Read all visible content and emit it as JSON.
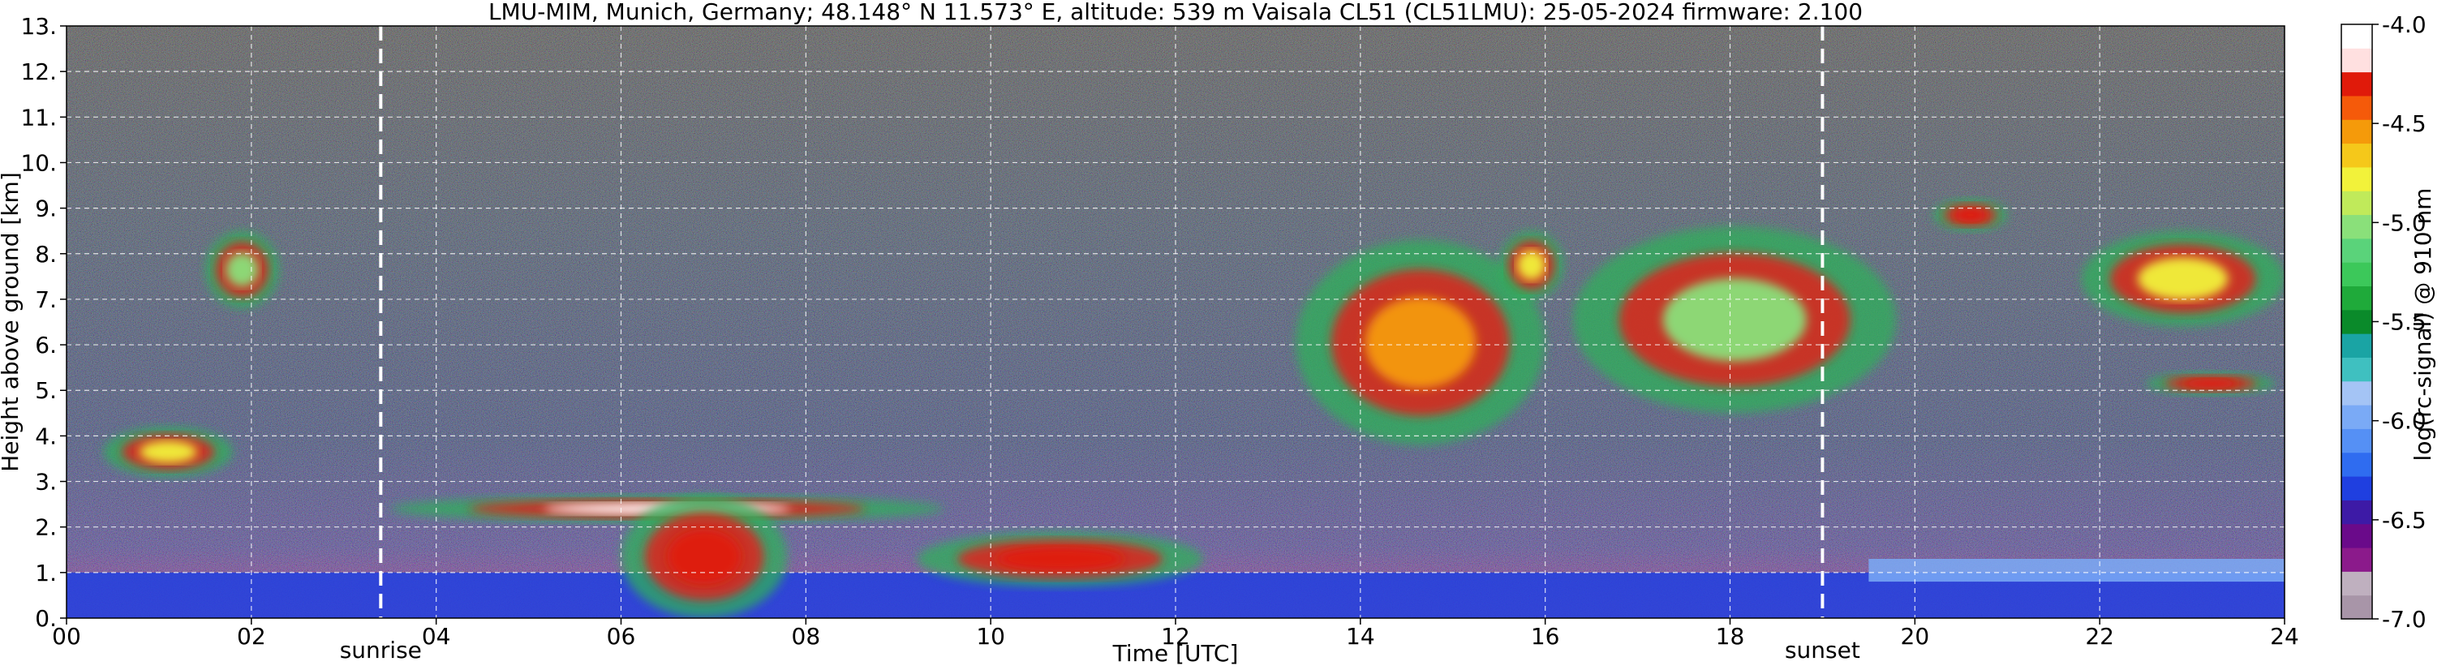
{
  "chart_data": {
    "type": "heatmap",
    "title": "LMU-MIM, Munich, Germany; 48.148° N 11.573° E, altitude: 539 m    Vaisala CL51 (CL51LMU): 25-05-2024    firmware: 2.100",
    "xlabel": "Time [UTC]",
    "ylabel": "Height above ground [km]",
    "xlim": [
      0,
      24
    ],
    "ylim": [
      0,
      13
    ],
    "x_ticks": [
      0,
      2,
      4,
      6,
      8,
      10,
      12,
      14,
      16,
      18,
      20,
      22,
      24
    ],
    "x_tick_labels": [
      "00",
      "02",
      "04",
      "06",
      "08",
      "10",
      "12",
      "14",
      "16",
      "18",
      "20",
      "22",
      "24"
    ],
    "y_ticks": [
      0,
      1,
      2,
      3,
      4,
      5,
      6,
      7,
      8,
      9,
      10,
      11,
      12,
      13
    ],
    "y_tick_labels": [
      "0.",
      "1.",
      "2.",
      "3.",
      "4.",
      "5.",
      "6.",
      "7.",
      "8.",
      "9.",
      "10.",
      "11.",
      "12.",
      "13."
    ],
    "grid": true,
    "events": [
      {
        "label": "sunrise",
        "time": 3.4
      },
      {
        "label": "sunset",
        "time": 19.0
      }
    ],
    "colorbar": {
      "label": "log(rc-signal) @ 910 nm",
      "range": [
        -7.0,
        -4.0
      ],
      "ticks": [
        -4.0,
        -4.5,
        -5.0,
        -5.5,
        -6.0,
        -6.5,
        -7.0
      ],
      "tick_labels": [
        "-4.0",
        "-4.5",
        "-5.0",
        "-5.5",
        "-6.0",
        "-6.5",
        "-7.0"
      ],
      "colors": [
        "#a895a8",
        "#bfb0bf",
        "#8b1a8b",
        "#6a0a8a",
        "#3d1aa6",
        "#1f3fe0",
        "#2f6cf0",
        "#5590f5",
        "#7aaaf6",
        "#a4c4f5",
        "#3fc0c0",
        "#1aa4a4",
        "#0a8a2a",
        "#1faa3a",
        "#3cc85a",
        "#5ad37a",
        "#8ae07a",
        "#c0ea5a",
        "#f2f23a",
        "#f5c81a",
        "#f59a0a",
        "#f55a0a",
        "#e01a0a",
        "#ffe0e0",
        "#ffffff"
      ]
    },
    "series": [
      {
        "kind": "layer",
        "x": [
          0,
          24
        ],
        "y": [
          0,
          1.0
        ],
        "level": -6.4
      },
      {
        "kind": "cloud",
        "x": [
          1.5,
          2.3
        ],
        "y": [
          6.8,
          8.5
        ],
        "level": -5.0
      },
      {
        "kind": "cloud",
        "x": [
          0.4,
          1.8
        ],
        "y": [
          3.1,
          4.2
        ],
        "level": -4.8
      },
      {
        "kind": "cloud",
        "x": [
          3.5,
          9.5
        ],
        "y": [
          2.1,
          2.7
        ],
        "level": -4.0
      },
      {
        "kind": "cloud",
        "x": [
          6.0,
          7.8
        ],
        "y": [
          0.0,
          2.7
        ],
        "level": -4.2
      },
      {
        "kind": "cloud",
        "x": [
          9.2,
          12.3
        ],
        "y": [
          0.7,
          1.9
        ],
        "level": -4.3
      },
      {
        "kind": "cloud",
        "x": [
          13.3,
          16.0
        ],
        "y": [
          3.8,
          8.3
        ],
        "level": -4.5
      },
      {
        "kind": "cloud",
        "x": [
          15.5,
          16.2
        ],
        "y": [
          7.0,
          8.5
        ],
        "level": -4.8
      },
      {
        "kind": "cloud",
        "x": [
          16.3,
          19.8
        ],
        "y": [
          4.5,
          8.6
        ],
        "level": -5.0
      },
      {
        "kind": "cloud",
        "x": [
          20.2,
          21.0
        ],
        "y": [
          8.5,
          9.2
        ],
        "level": -4.2
      },
      {
        "kind": "cloud",
        "x": [
          21.8,
          24.0
        ],
        "y": [
          6.4,
          8.5
        ],
        "level": -4.8
      },
      {
        "kind": "cloud",
        "x": [
          22.5,
          23.9
        ],
        "y": [
          4.9,
          5.4
        ],
        "level": -4.3
      },
      {
        "kind": "layer",
        "x": [
          19.5,
          24.0
        ],
        "y": [
          0.8,
          1.3
        ],
        "level": -6.0
      }
    ]
  }
}
